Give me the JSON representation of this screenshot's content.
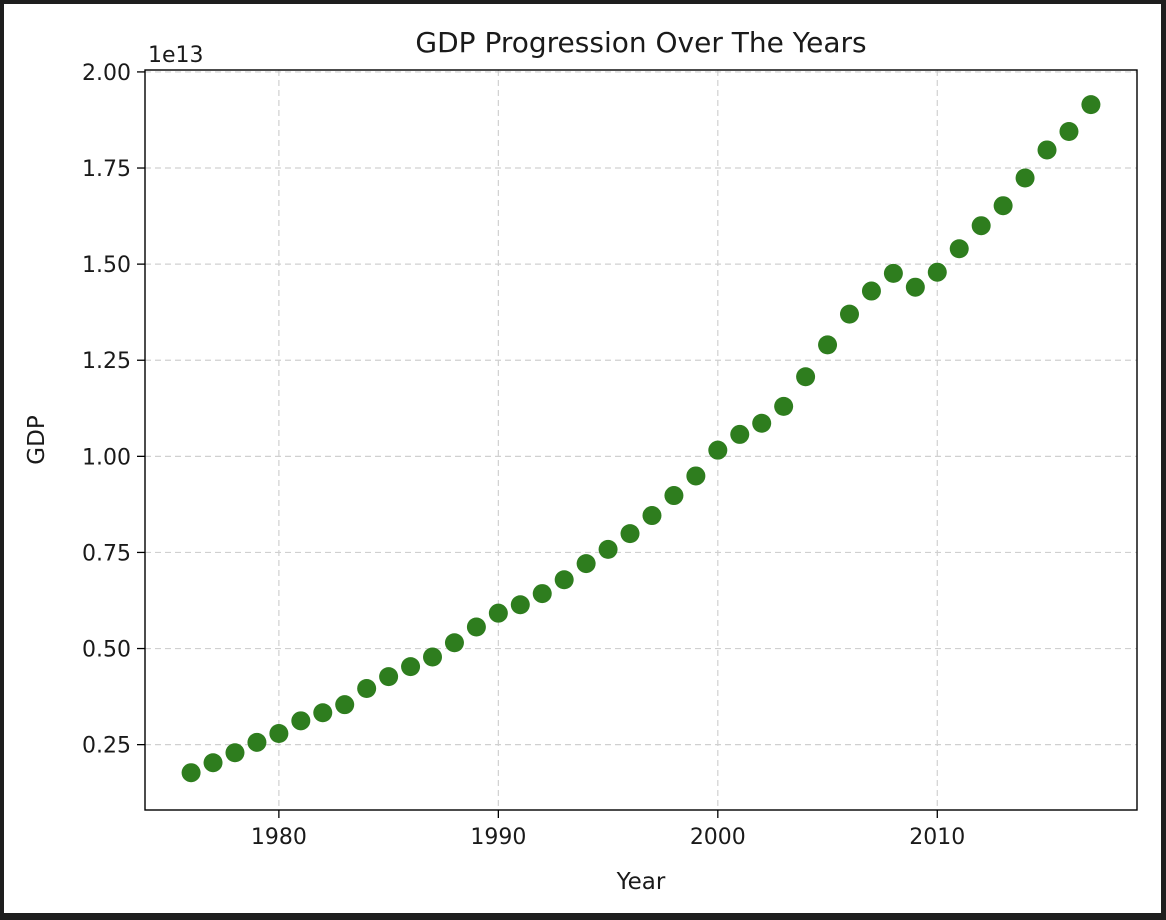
{
  "chart_data": {
    "type": "scatter",
    "title": "GDP Progression Over The Years",
    "xlabel": "Year",
    "ylabel": "GDP",
    "y_offset_label": "1e13",
    "y_scale_factor": 10000000000000.0,
    "xlim": [
      1973.9,
      2019.1
    ],
    "ylim": [
      0.08,
      2.005
    ],
    "x_ticks": [
      1980,
      1990,
      2000,
      2010
    ],
    "y_ticks": [
      0.25,
      0.5,
      0.75,
      1.0,
      1.25,
      1.5,
      1.75,
      2.0
    ],
    "y_tick_labels": [
      "0.25",
      "0.50",
      "0.75",
      "1.00",
      "1.25",
      "1.50",
      "1.75",
      "2.00"
    ],
    "grid": true,
    "marker_color": "#2e7d1e",
    "x": [
      1976,
      1977,
      1978,
      1979,
      1980,
      1981,
      1982,
      1983,
      1984,
      1985,
      1986,
      1987,
      1988,
      1989,
      1990,
      1991,
      1992,
      1993,
      1994,
      1995,
      1996,
      1997,
      1998,
      1999,
      2000,
      2001,
      2002,
      2003,
      2004,
      2005,
      2006,
      2007,
      2008,
      2009,
      2010,
      2011,
      2012,
      2013,
      2014,
      2015,
      2016,
      2017
    ],
    "y": [
      0.177,
      0.203,
      0.229,
      0.256,
      0.279,
      0.312,
      0.333,
      0.354,
      0.396,
      0.427,
      0.453,
      0.478,
      0.515,
      0.556,
      0.592,
      0.614,
      0.643,
      0.679,
      0.721,
      0.758,
      0.799,
      0.846,
      0.898,
      0.949,
      1.016,
      1.057,
      1.086,
      1.13,
      1.207,
      1.29,
      1.37,
      1.43,
      1.476,
      1.44,
      1.479,
      1.54,
      1.6,
      1.652,
      1.724,
      1.797,
      1.845,
      1.915
    ]
  }
}
